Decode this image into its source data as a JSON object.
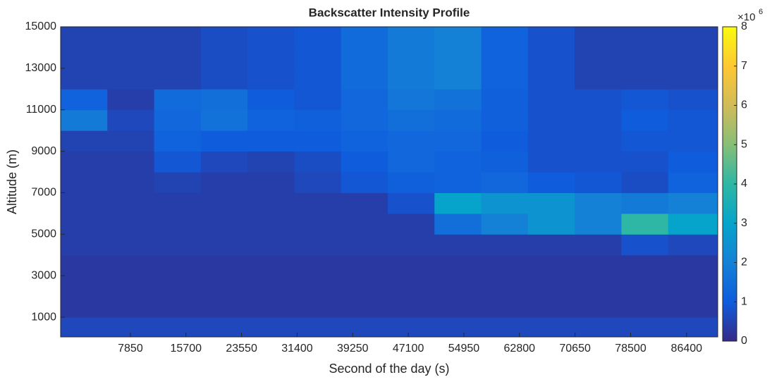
{
  "chart_data": {
    "type": "heatmap",
    "title": "Backscatter Intensity Profile",
    "x_label": "Second of the day (s)",
    "y_label": "Altitude (m)",
    "x": [
      -2000,
      4600,
      11200,
      17800,
      24400,
      31000,
      37600,
      44200,
      50800,
      57400,
      64000,
      70600,
      77200,
      83800,
      90800
    ],
    "y": [
      50,
      1000,
      2000,
      3000,
      4000,
      5000,
      6000,
      7000,
      8000,
      9000,
      10000,
      11000,
      12000,
      13000,
      14000,
      15000
    ],
    "z": [
      [
        0.6,
        0.6,
        0.6,
        0.6,
        0.6,
        0.6,
        0.6,
        0.6,
        0.6,
        0.6,
        0.6,
        0.6,
        0.6,
        0.6
      ],
      [
        0.3,
        0.3,
        0.3,
        0.3,
        0.3,
        0.3,
        0.3,
        0.3,
        0.3,
        0.3,
        0.3,
        0.3,
        0.3,
        0.3
      ],
      [
        0.3,
        0.3,
        0.3,
        0.3,
        0.3,
        0.3,
        0.3,
        0.3,
        0.3,
        0.3,
        0.3,
        0.3,
        0.3,
        0.3
      ],
      [
        0.3,
        0.3,
        0.3,
        0.3,
        0.3,
        0.3,
        0.3,
        0.3,
        0.3,
        0.3,
        0.3,
        0.3,
        0.3,
        0.3
      ],
      [
        0.4,
        0.4,
        0.4,
        0.4,
        0.4,
        0.4,
        0.4,
        0.4,
        0.4,
        0.4,
        0.4,
        0.4,
        0.8,
        0.6
      ],
      [
        0.4,
        0.4,
        0.4,
        0.4,
        0.4,
        0.4,
        0.4,
        0.4,
        1.5,
        2.0,
        2.5,
        2.0,
        4.0,
        3.0
      ],
      [
        0.4,
        0.4,
        0.4,
        0.4,
        0.4,
        0.4,
        0.4,
        0.8,
        3.0,
        2.5,
        2.5,
        2.0,
        1.8,
        2.0
      ],
      [
        0.4,
        0.4,
        0.5,
        0.4,
        0.4,
        0.6,
        0.9,
        1.1,
        1.2,
        1.3,
        1.0,
        0.9,
        0.7,
        1.2
      ],
      [
        0.4,
        0.4,
        0.9,
        0.6,
        0.5,
        0.7,
        1.0,
        1.3,
        1.2,
        1.1,
        0.8,
        0.8,
        0.8,
        1.0
      ],
      [
        0.5,
        0.5,
        1.2,
        1.0,
        1.0,
        1.0,
        1.2,
        1.3,
        1.3,
        1.0,
        0.8,
        0.8,
        0.9,
        0.9
      ],
      [
        1.8,
        0.6,
        1.3,
        1.6,
        1.2,
        1.1,
        1.3,
        1.5,
        1.4,
        1.1,
        0.8,
        0.8,
        1.0,
        0.9
      ],
      [
        1.2,
        0.4,
        1.4,
        1.5,
        1.0,
        0.9,
        1.3,
        1.7,
        1.6,
        1.1,
        0.8,
        0.8,
        0.9,
        0.8
      ],
      [
        0.5,
        0.5,
        0.5,
        0.7,
        0.8,
        0.9,
        1.4,
        1.8,
        2.0,
        1.2,
        0.8,
        0.5,
        0.5,
        0.5
      ],
      [
        0.5,
        0.5,
        0.5,
        0.7,
        0.8,
        0.9,
        1.4,
        1.8,
        2.0,
        1.2,
        0.8,
        0.5,
        0.5,
        0.5
      ],
      [
        0.5,
        0.5,
        0.5,
        0.7,
        0.8,
        0.9,
        1.4,
        1.8,
        2.0,
        1.2,
        0.8,
        0.5,
        0.5,
        0.5
      ]
    ],
    "xlim": [
      -2000,
      90800
    ],
    "ylim": [
      50,
      15000
    ],
    "xticks": [
      7850,
      15700,
      23550,
      31400,
      39250,
      47100,
      54950,
      62800,
      70650,
      78500,
      86400
    ],
    "yticks": [
      1000,
      3000,
      5000,
      7000,
      9000,
      11000,
      13000,
      15000
    ],
    "clim": [
      0,
      8
    ],
    "cticks": [
      0,
      1,
      2,
      3,
      4,
      5,
      6,
      7,
      8
    ],
    "colorbar_multiplier": "×10",
    "colorbar_exponent": "6",
    "colormap": [
      "#352a87",
      "#0f5cdd",
      "#1481d6",
      "#06a4ca",
      "#2eb7a4",
      "#87bf77",
      "#d1bb59",
      "#fec832",
      "#f9fb0e"
    ]
  }
}
